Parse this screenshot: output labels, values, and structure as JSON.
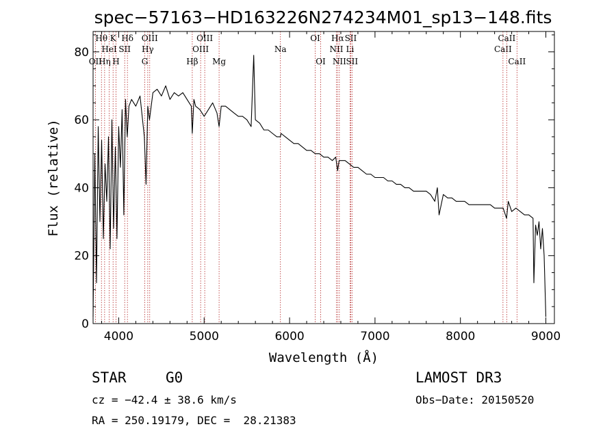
{
  "chart_data": {
    "type": "line",
    "title": "spec−57163−HD163226N274234M01_sp13−148.fits",
    "xlabel": "Wavelength (Å)",
    "ylabel": "Flux (relative)",
    "xlim": [
      3700,
      9100
    ],
    "ylim": [
      0,
      86
    ],
    "xticks": [
      4000,
      5000,
      6000,
      7000,
      8000,
      9000
    ],
    "yticks": [
      0,
      20,
      40,
      60,
      80
    ],
    "spectral_lines": [
      {
        "label": "OII",
        "wavelength": 3727,
        "row": 3
      },
      {
        "label": "Hθ",
        "wavelength": 3798,
        "row": 1
      },
      {
        "label": "Hη",
        "wavelength": 3835,
        "row": 3
      },
      {
        "label": "HeI",
        "wavelength": 3889,
        "row": 2
      },
      {
        "label": "K",
        "wavelength": 3934,
        "row": 1
      },
      {
        "label": "H",
        "wavelength": 3968,
        "row": 3
      },
      {
        "label": "SII",
        "wavelength": 4070,
        "row": 2
      },
      {
        "label": "Hδ",
        "wavelength": 4102,
        "row": 1
      },
      {
        "label": "G",
        "wavelength": 4305,
        "row": 3
      },
      {
        "label": "Hγ",
        "wavelength": 4340,
        "row": 2
      },
      {
        "label": "OIII",
        "wavelength": 4363,
        "row": 1
      },
      {
        "label": "Hβ",
        "wavelength": 4861,
        "row": 3
      },
      {
        "label": "OIII",
        "wavelength": 4959,
        "row": 2
      },
      {
        "label": "OIII",
        "wavelength": 5007,
        "row": 1
      },
      {
        "label": "Mg",
        "wavelength": 5175,
        "row": 3
      },
      {
        "label": "Na",
        "wavelength": 5893,
        "row": 2
      },
      {
        "label": "OI",
        "wavelength": 6300,
        "row": 1
      },
      {
        "label": "OI",
        "wavelength": 6364,
        "row": 3
      },
      {
        "label": "NII",
        "wavelength": 6548,
        "row": 2
      },
      {
        "label": "Hα",
        "wavelength": 6563,
        "row": 1
      },
      {
        "label": "NII",
        "wavelength": 6583,
        "row": 3
      },
      {
        "label": "Li",
        "wavelength": 6708,
        "row": 2
      },
      {
        "label": "SII",
        "wavelength": 6716,
        "row": 1
      },
      {
        "label": "SII",
        "wavelength": 6731,
        "row": 3
      },
      {
        "label": "CaII",
        "wavelength": 8498,
        "row": 2
      },
      {
        "label": "CaII",
        "wavelength": 8542,
        "row": 1
      },
      {
        "label": "CaII",
        "wavelength": 8662,
        "row": 3
      }
    ],
    "series": [
      {
        "name": "flux",
        "x": [
          3700,
          3720,
          3740,
          3760,
          3780,
          3800,
          3820,
          3840,
          3860,
          3880,
          3900,
          3920,
          3940,
          3960,
          3980,
          4000,
          4020,
          4040,
          4060,
          4080,
          4100,
          4120,
          4150,
          4200,
          4250,
          4300,
          4320,
          4340,
          4360,
          4400,
          4450,
          4500,
          4550,
          4600,
          4650,
          4700,
          4750,
          4800,
          4850,
          4861,
          4880,
          4900,
          4950,
          5000,
          5050,
          5100,
          5150,
          5175,
          5200,
          5250,
          5300,
          5350,
          5400,
          5450,
          5500,
          5550,
          5580,
          5600,
          5650,
          5700,
          5750,
          5800,
          5850,
          5893,
          5900,
          5950,
          6000,
          6050,
          6100,
          6150,
          6200,
          6250,
          6300,
          6350,
          6400,
          6450,
          6500,
          6540,
          6563,
          6580,
          6600,
          6650,
          6700,
          6750,
          6800,
          6850,
          6900,
          6950,
          7000,
          7050,
          7100,
          7150,
          7200,
          7250,
          7300,
          7350,
          7400,
          7450,
          7500,
          7550,
          7600,
          7650,
          7700,
          7730,
          7750,
          7800,
          7850,
          7900,
          7950,
          8000,
          8050,
          8100,
          8150,
          8200,
          8250,
          8300,
          8350,
          8400,
          8450,
          8500,
          8540,
          8560,
          8600,
          8650,
          8700,
          8750,
          8800,
          8850,
          8860,
          8880,
          8900,
          8920,
          8940,
          8960,
          8980,
          9000
        ],
        "values": [
          2,
          50,
          12,
          58,
          30,
          54,
          25,
          47,
          36,
          55,
          22,
          60,
          28,
          52,
          25,
          58,
          46,
          63,
          32,
          66,
          55,
          64,
          66,
          64,
          67,
          55,
          41,
          64,
          60,
          68,
          69,
          67,
          70,
          66,
          68,
          67,
          68,
          66,
          64,
          56,
          66,
          64,
          63,
          61,
          63,
          65,
          62,
          58,
          64,
          64,
          63,
          62,
          61,
          61,
          60,
          58,
          79,
          60,
          59,
          57,
          57,
          56,
          55,
          55,
          56,
          55,
          54,
          53,
          53,
          52,
          51,
          51,
          50,
          50,
          49,
          49,
          48,
          49,
          45,
          48,
          48,
          48,
          47,
          46,
          46,
          45,
          44,
          44,
          43,
          43,
          43,
          42,
          42,
          41,
          41,
          40,
          40,
          39,
          39,
          39,
          39,
          38,
          36,
          40,
          32,
          38,
          37,
          37,
          36,
          36,
          36,
          35,
          35,
          35,
          35,
          35,
          35,
          34,
          34,
          34,
          31,
          36,
          33,
          34,
          33,
          32,
          32,
          31,
          12,
          29,
          26,
          30,
          22,
          28,
          20,
          2
        ]
      }
    ]
  },
  "info": {
    "class_label": "STAR",
    "subclass": "G0",
    "survey": "LAMOST DR3",
    "cz": "cz = −42.4 ± 38.6 km/s",
    "obs_date": "Obs−Date: 20150520",
    "coords": "RA = 250.19179, DEC =  28.21383"
  }
}
